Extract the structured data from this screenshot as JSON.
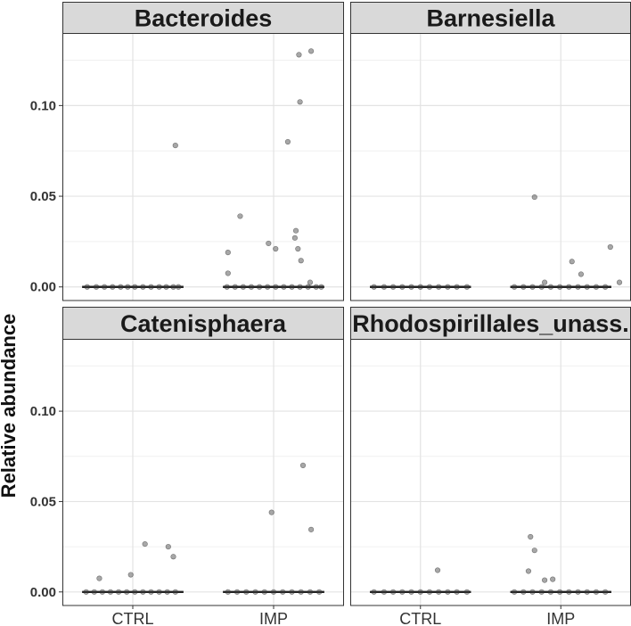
{
  "chart_data": {
    "type": "scatter",
    "ylabel": "Relative abundance",
    "xlabel": "",
    "categories": [
      "CTRL",
      "IMP"
    ],
    "ylim": [
      -0.0075,
      0.14
    ],
    "yticks": [
      0.0,
      0.05,
      0.1
    ],
    "ytick_labels": [
      "0.00",
      "0.05",
      "0.10"
    ],
    "grid": true,
    "facets": [
      {
        "title": "Bacteroides",
        "median": {
          "CTRL": 0.0,
          "IMP": 0.0
        },
        "points": [
          {
            "group": "CTRL",
            "jitter": -0.45,
            "y": 0.0
          },
          {
            "group": "CTRL",
            "jitter": -0.36,
            "y": 0.0
          },
          {
            "group": "CTRL",
            "jitter": -0.28,
            "y": 0.0
          },
          {
            "group": "CTRL",
            "jitter": -0.2,
            "y": 0.0
          },
          {
            "group": "CTRL",
            "jitter": -0.12,
            "y": 0.0
          },
          {
            "group": "CTRL",
            "jitter": -0.05,
            "y": 0.0
          },
          {
            "group": "CTRL",
            "jitter": 0.02,
            "y": 0.0
          },
          {
            "group": "CTRL",
            "jitter": 0.1,
            "y": 0.0
          },
          {
            "group": "CTRL",
            "jitter": 0.18,
            "y": 0.0
          },
          {
            "group": "CTRL",
            "jitter": 0.26,
            "y": 0.0
          },
          {
            "group": "CTRL",
            "jitter": 0.33,
            "y": 0.0
          },
          {
            "group": "CTRL",
            "jitter": 0.4,
            "y": 0.0
          },
          {
            "group": "CTRL",
            "jitter": 0.45,
            "y": 0.0
          },
          {
            "group": "CTRL",
            "jitter": 0.42,
            "y": 0.078
          },
          {
            "group": "IMP",
            "jitter": -0.46,
            "y": 0.0
          },
          {
            "group": "IMP",
            "jitter": -0.38,
            "y": 0.0
          },
          {
            "group": "IMP",
            "jitter": -0.3,
            "y": 0.0
          },
          {
            "group": "IMP",
            "jitter": -0.22,
            "y": 0.0
          },
          {
            "group": "IMP",
            "jitter": -0.14,
            "y": 0.0
          },
          {
            "group": "IMP",
            "jitter": -0.06,
            "y": 0.0
          },
          {
            "group": "IMP",
            "jitter": 0.02,
            "y": 0.0
          },
          {
            "group": "IMP",
            "jitter": 0.1,
            "y": 0.0
          },
          {
            "group": "IMP",
            "jitter": 0.18,
            "y": 0.0
          },
          {
            "group": "IMP",
            "jitter": 0.26,
            "y": 0.0
          },
          {
            "group": "IMP",
            "jitter": 0.34,
            "y": 0.0
          },
          {
            "group": "IMP",
            "jitter": 0.42,
            "y": 0.0
          },
          {
            "group": "IMP",
            "jitter": 0.47,
            "y": 0.0
          },
          {
            "group": "IMP",
            "jitter": -0.45,
            "y": 0.019
          },
          {
            "group": "IMP",
            "jitter": -0.45,
            "y": 0.0075
          },
          {
            "group": "IMP",
            "jitter": -0.33,
            "y": 0.039
          },
          {
            "group": "IMP",
            "jitter": -0.05,
            "y": 0.024
          },
          {
            "group": "IMP",
            "jitter": 0.02,
            "y": 0.021
          },
          {
            "group": "IMP",
            "jitter": 0.14,
            "y": 0.08
          },
          {
            "group": "IMP",
            "jitter": 0.22,
            "y": 0.031
          },
          {
            "group": "IMP",
            "jitter": 0.21,
            "y": 0.027
          },
          {
            "group": "IMP",
            "jitter": 0.24,
            "y": 0.021
          },
          {
            "group": "IMP",
            "jitter": 0.27,
            "y": 0.0145
          },
          {
            "group": "IMP",
            "jitter": 0.26,
            "y": 0.102
          },
          {
            "group": "IMP",
            "jitter": 0.25,
            "y": 0.128
          },
          {
            "group": "IMP",
            "jitter": 0.37,
            "y": 0.13
          },
          {
            "group": "IMP",
            "jitter": 0.36,
            "y": 0.0025
          }
        ]
      },
      {
        "title": "Barnesiella",
        "median": {
          "CTRL": 0.0,
          "IMP": 0.0
        },
        "points": [
          {
            "group": "CTRL",
            "jitter": -0.46,
            "y": 0.0
          },
          {
            "group": "CTRL",
            "jitter": -0.36,
            "y": 0.0
          },
          {
            "group": "CTRL",
            "jitter": -0.27,
            "y": 0.0
          },
          {
            "group": "CTRL",
            "jitter": -0.18,
            "y": 0.0
          },
          {
            "group": "CTRL",
            "jitter": -0.09,
            "y": 0.0
          },
          {
            "group": "CTRL",
            "jitter": 0.0,
            "y": 0.0
          },
          {
            "group": "CTRL",
            "jitter": 0.09,
            "y": 0.0
          },
          {
            "group": "CTRL",
            "jitter": 0.18,
            "y": 0.0
          },
          {
            "group": "CTRL",
            "jitter": 0.27,
            "y": 0.0
          },
          {
            "group": "CTRL",
            "jitter": 0.36,
            "y": 0.0
          },
          {
            "group": "CTRL",
            "jitter": 0.46,
            "y": 0.0
          },
          {
            "group": "IMP",
            "jitter": -0.46,
            "y": 0.0
          },
          {
            "group": "IMP",
            "jitter": -0.37,
            "y": 0.0
          },
          {
            "group": "IMP",
            "jitter": -0.28,
            "y": 0.0
          },
          {
            "group": "IMP",
            "jitter": -0.19,
            "y": 0.0
          },
          {
            "group": "IMP",
            "jitter": -0.1,
            "y": 0.0
          },
          {
            "group": "IMP",
            "jitter": -0.01,
            "y": 0.0
          },
          {
            "group": "IMP",
            "jitter": 0.08,
            "y": 0.0
          },
          {
            "group": "IMP",
            "jitter": 0.17,
            "y": 0.0
          },
          {
            "group": "IMP",
            "jitter": 0.26,
            "y": 0.0
          },
          {
            "group": "IMP",
            "jitter": 0.35,
            "y": 0.0
          },
          {
            "group": "IMP",
            "jitter": 0.44,
            "y": 0.0
          },
          {
            "group": "IMP",
            "jitter": -0.26,
            "y": 0.0495
          },
          {
            "group": "IMP",
            "jitter": -0.16,
            "y": 0.0025
          },
          {
            "group": "IMP",
            "jitter": 0.11,
            "y": 0.014
          },
          {
            "group": "IMP",
            "jitter": 0.2,
            "y": 0.007
          },
          {
            "group": "IMP",
            "jitter": 0.49,
            "y": 0.022
          },
          {
            "group": "IMP",
            "jitter": 0.58,
            "y": 0.0025
          }
        ]
      },
      {
        "title": "Catenisphaera",
        "median": {
          "CTRL": 0.0,
          "IMP": 0.0
        },
        "points": [
          {
            "group": "CTRL",
            "jitter": -0.46,
            "y": 0.0
          },
          {
            "group": "CTRL",
            "jitter": -0.38,
            "y": 0.0
          },
          {
            "group": "CTRL",
            "jitter": -0.3,
            "y": 0.0
          },
          {
            "group": "CTRL",
            "jitter": -0.22,
            "y": 0.0
          },
          {
            "group": "CTRL",
            "jitter": -0.14,
            "y": 0.0
          },
          {
            "group": "CTRL",
            "jitter": -0.06,
            "y": 0.0
          },
          {
            "group": "CTRL",
            "jitter": 0.02,
            "y": 0.0
          },
          {
            "group": "CTRL",
            "jitter": 0.1,
            "y": 0.0
          },
          {
            "group": "CTRL",
            "jitter": 0.18,
            "y": 0.0
          },
          {
            "group": "CTRL",
            "jitter": 0.26,
            "y": 0.0
          },
          {
            "group": "CTRL",
            "jitter": 0.34,
            "y": 0.0
          },
          {
            "group": "CTRL",
            "jitter": 0.42,
            "y": 0.0
          },
          {
            "group": "CTRL",
            "jitter": -0.33,
            "y": 0.0075
          },
          {
            "group": "CTRL",
            "jitter": -0.02,
            "y": 0.0095
          },
          {
            "group": "CTRL",
            "jitter": 0.12,
            "y": 0.0265
          },
          {
            "group": "CTRL",
            "jitter": 0.35,
            "y": 0.025
          },
          {
            "group": "CTRL",
            "jitter": 0.4,
            "y": 0.0195
          },
          {
            "group": "IMP",
            "jitter": -0.45,
            "y": 0.0
          },
          {
            "group": "IMP",
            "jitter": -0.36,
            "y": 0.0
          },
          {
            "group": "IMP",
            "jitter": -0.27,
            "y": 0.0
          },
          {
            "group": "IMP",
            "jitter": -0.18,
            "y": 0.0
          },
          {
            "group": "IMP",
            "jitter": -0.09,
            "y": 0.0
          },
          {
            "group": "IMP",
            "jitter": 0.0,
            "y": 0.0
          },
          {
            "group": "IMP",
            "jitter": 0.09,
            "y": 0.0
          },
          {
            "group": "IMP",
            "jitter": 0.18,
            "y": 0.0
          },
          {
            "group": "IMP",
            "jitter": 0.27,
            "y": 0.0
          },
          {
            "group": "IMP",
            "jitter": 0.36,
            "y": 0.0
          },
          {
            "group": "IMP",
            "jitter": 0.45,
            "y": 0.0
          },
          {
            "group": "IMP",
            "jitter": -0.02,
            "y": 0.044
          },
          {
            "group": "IMP",
            "jitter": 0.29,
            "y": 0.07
          },
          {
            "group": "IMP",
            "jitter": 0.37,
            "y": 0.0345
          }
        ]
      },
      {
        "title": "Rhodospirillales_unass.",
        "median": {
          "CTRL": 0.0,
          "IMP": 0.0
        },
        "points": [
          {
            "group": "CTRL",
            "jitter": -0.46,
            "y": 0.0
          },
          {
            "group": "CTRL",
            "jitter": -0.36,
            "y": 0.0
          },
          {
            "group": "CTRL",
            "jitter": -0.27,
            "y": 0.0
          },
          {
            "group": "CTRL",
            "jitter": -0.18,
            "y": 0.0
          },
          {
            "group": "CTRL",
            "jitter": -0.09,
            "y": 0.0
          },
          {
            "group": "CTRL",
            "jitter": 0.0,
            "y": 0.0
          },
          {
            "group": "CTRL",
            "jitter": 0.09,
            "y": 0.0
          },
          {
            "group": "CTRL",
            "jitter": 0.18,
            "y": 0.0
          },
          {
            "group": "CTRL",
            "jitter": 0.27,
            "y": 0.0
          },
          {
            "group": "CTRL",
            "jitter": 0.36,
            "y": 0.0
          },
          {
            "group": "CTRL",
            "jitter": 0.46,
            "y": 0.0
          },
          {
            "group": "CTRL",
            "jitter": 0.17,
            "y": 0.012
          },
          {
            "group": "IMP",
            "jitter": -0.46,
            "y": 0.0
          },
          {
            "group": "IMP",
            "jitter": -0.37,
            "y": 0.0
          },
          {
            "group": "IMP",
            "jitter": -0.28,
            "y": 0.0
          },
          {
            "group": "IMP",
            "jitter": -0.19,
            "y": 0.0
          },
          {
            "group": "IMP",
            "jitter": -0.1,
            "y": 0.0
          },
          {
            "group": "IMP",
            "jitter": -0.01,
            "y": 0.0
          },
          {
            "group": "IMP",
            "jitter": 0.08,
            "y": 0.0
          },
          {
            "group": "IMP",
            "jitter": 0.17,
            "y": 0.0
          },
          {
            "group": "IMP",
            "jitter": 0.26,
            "y": 0.0
          },
          {
            "group": "IMP",
            "jitter": 0.35,
            "y": 0.0
          },
          {
            "group": "IMP",
            "jitter": 0.44,
            "y": 0.0
          },
          {
            "group": "IMP",
            "jitter": -0.3,
            "y": 0.0305
          },
          {
            "group": "IMP",
            "jitter": -0.26,
            "y": 0.023
          },
          {
            "group": "IMP",
            "jitter": -0.32,
            "y": 0.0115
          },
          {
            "group": "IMP",
            "jitter": -0.16,
            "y": 0.0065
          },
          {
            "group": "IMP",
            "jitter": -0.08,
            "y": 0.007
          }
        ]
      }
    ]
  }
}
